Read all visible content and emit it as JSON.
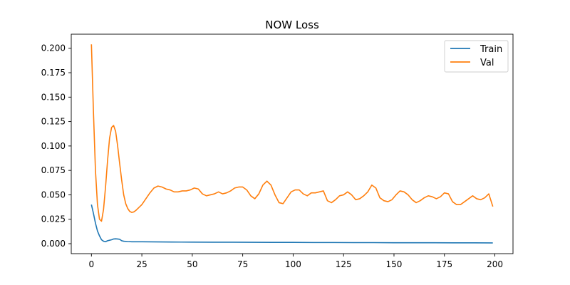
{
  "chart_data": {
    "type": "line",
    "title": "NOW Loss",
    "xlabel": "",
    "ylabel": "",
    "xlim": [
      -10,
      209
    ],
    "ylim": [
      -0.0102,
      0.2144
    ],
    "xticks": [
      0,
      25,
      50,
      75,
      100,
      125,
      150,
      175,
      200
    ],
    "xtick_labels": [
      "0",
      "25",
      "50",
      "75",
      "100",
      "125",
      "150",
      "175",
      "200"
    ],
    "yticks": [
      0,
      0.025,
      0.05,
      0.075,
      0.1,
      0.125,
      0.15,
      0.175,
      0.2
    ],
    "ytick_labels": [
      "0.000",
      "0.025",
      "0.050",
      "0.075",
      "0.100",
      "0.125",
      "0.150",
      "0.175",
      "0.200"
    ],
    "grid": false,
    "legend_position": "top-right",
    "series": [
      {
        "name": "Train",
        "color": "#1f77b4",
        "points": [
          [
            0,
            0.04
          ],
          [
            1,
            0.031
          ],
          [
            2,
            0.021
          ],
          [
            3,
            0.013
          ],
          [
            4,
            0.008
          ],
          [
            5,
            0.004
          ],
          [
            6,
            0.0025
          ],
          [
            7,
            0.002
          ],
          [
            8,
            0.003
          ],
          [
            9,
            0.0035
          ],
          [
            10,
            0.004
          ],
          [
            11,
            0.0048
          ],
          [
            12,
            0.005
          ],
          [
            13,
            0.0048
          ],
          [
            14,
            0.0045
          ],
          [
            15,
            0.003
          ],
          [
            16,
            0.0025
          ],
          [
            18,
            0.0022
          ],
          [
            20,
            0.002
          ],
          [
            25,
            0.002
          ],
          [
            30,
            0.0019
          ],
          [
            35,
            0.0018
          ],
          [
            40,
            0.0017
          ],
          [
            50,
            0.0016
          ],
          [
            60,
            0.0015
          ],
          [
            70,
            0.0015
          ],
          [
            80,
            0.0014
          ],
          [
            90,
            0.0013
          ],
          [
            100,
            0.0013
          ],
          [
            110,
            0.0012
          ],
          [
            120,
            0.0012
          ],
          [
            130,
            0.0011
          ],
          [
            140,
            0.0011
          ],
          [
            150,
            0.001
          ],
          [
            160,
            0.001
          ],
          [
            170,
            0.001
          ],
          [
            180,
            0.0009
          ],
          [
            190,
            0.0009
          ],
          [
            199,
            0.0008
          ]
        ]
      },
      {
        "name": "Val",
        "color": "#ff7f0e",
        "points": [
          [
            0,
            0.204
          ],
          [
            1,
            0.135
          ],
          [
            2,
            0.075
          ],
          [
            3,
            0.04
          ],
          [
            4,
            0.025
          ],
          [
            5,
            0.023
          ],
          [
            6,
            0.035
          ],
          [
            7,
            0.058
          ],
          [
            8,
            0.085
          ],
          [
            9,
            0.108
          ],
          [
            10,
            0.119
          ],
          [
            11,
            0.121
          ],
          [
            12,
            0.115
          ],
          [
            13,
            0.1
          ],
          [
            14,
            0.082
          ],
          [
            15,
            0.065
          ],
          [
            16,
            0.05
          ],
          [
            17,
            0.041
          ],
          [
            18,
            0.036
          ],
          [
            19,
            0.033
          ],
          [
            20,
            0.032
          ],
          [
            21,
            0.0325
          ],
          [
            22,
            0.034
          ],
          [
            23,
            0.036
          ],
          [
            25,
            0.04
          ],
          [
            27,
            0.046
          ],
          [
            29,
            0.052
          ],
          [
            31,
            0.057
          ],
          [
            33,
            0.059
          ],
          [
            35,
            0.058
          ],
          [
            37,
            0.056
          ],
          [
            39,
            0.055
          ],
          [
            41,
            0.053
          ],
          [
            43,
            0.053
          ],
          [
            45,
            0.054
          ],
          [
            47,
            0.054
          ],
          [
            49,
            0.055
          ],
          [
            51,
            0.057
          ],
          [
            53,
            0.056
          ],
          [
            55,
            0.051
          ],
          [
            57,
            0.049
          ],
          [
            59,
            0.05
          ],
          [
            61,
            0.051
          ],
          [
            63,
            0.053
          ],
          [
            65,
            0.051
          ],
          [
            67,
            0.052
          ],
          [
            69,
            0.054
          ],
          [
            71,
            0.057
          ],
          [
            73,
            0.058
          ],
          [
            75,
            0.058
          ],
          [
            77,
            0.055
          ],
          [
            79,
            0.049
          ],
          [
            81,
            0.046
          ],
          [
            83,
            0.051
          ],
          [
            85,
            0.06
          ],
          [
            87,
            0.064
          ],
          [
            89,
            0.06
          ],
          [
            91,
            0.05
          ],
          [
            93,
            0.042
          ],
          [
            95,
            0.041
          ],
          [
            97,
            0.047
          ],
          [
            99,
            0.053
          ],
          [
            101,
            0.055
          ],
          [
            103,
            0.055
          ],
          [
            105,
            0.051
          ],
          [
            107,
            0.049
          ],
          [
            109,
            0.052
          ],
          [
            111,
            0.052
          ],
          [
            113,
            0.053
          ],
          [
            115,
            0.054
          ],
          [
            117,
            0.044
          ],
          [
            119,
            0.042
          ],
          [
            121,
            0.045
          ],
          [
            123,
            0.049
          ],
          [
            125,
            0.05
          ],
          [
            127,
            0.053
          ],
          [
            129,
            0.05
          ],
          [
            131,
            0.045
          ],
          [
            133,
            0.046
          ],
          [
            135,
            0.049
          ],
          [
            137,
            0.053
          ],
          [
            139,
            0.06
          ],
          [
            141,
            0.057
          ],
          [
            143,
            0.047
          ],
          [
            145,
            0.044
          ],
          [
            147,
            0.043
          ],
          [
            149,
            0.045
          ],
          [
            151,
            0.05
          ],
          [
            153,
            0.054
          ],
          [
            155,
            0.053
          ],
          [
            157,
            0.05
          ],
          [
            159,
            0.045
          ],
          [
            161,
            0.042
          ],
          [
            163,
            0.044
          ],
          [
            165,
            0.047
          ],
          [
            167,
            0.049
          ],
          [
            169,
            0.048
          ],
          [
            171,
            0.046
          ],
          [
            173,
            0.048
          ],
          [
            175,
            0.052
          ],
          [
            177,
            0.051
          ],
          [
            179,
            0.043
          ],
          [
            181,
            0.04
          ],
          [
            183,
            0.04
          ],
          [
            185,
            0.043
          ],
          [
            187,
            0.046
          ],
          [
            189,
            0.049
          ],
          [
            191,
            0.046
          ],
          [
            193,
            0.045
          ],
          [
            195,
            0.047
          ],
          [
            197,
            0.051
          ],
          [
            199,
            0.038
          ]
        ]
      }
    ]
  }
}
